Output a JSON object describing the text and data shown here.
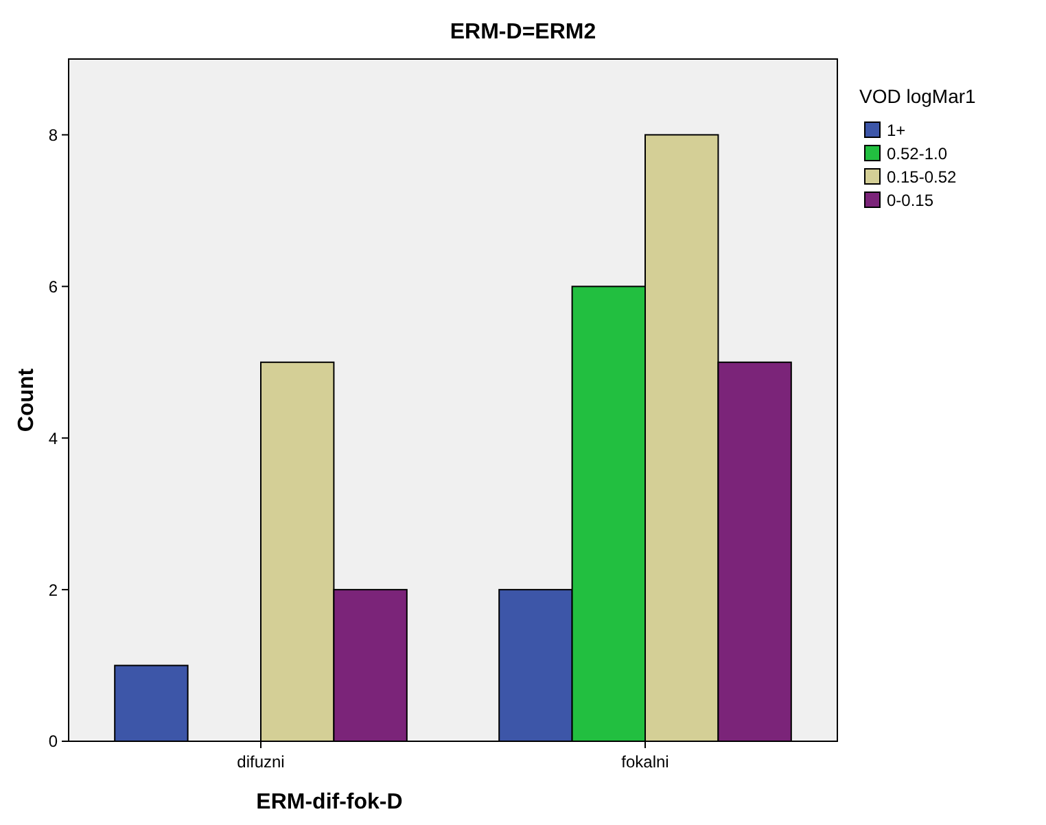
{
  "chart_data": {
    "type": "bar",
    "title": "ERM-D=ERM2",
    "xlabel": "ERM-dif-fok-D",
    "ylabel": "Count",
    "legend_title": "VOD logMar1",
    "categories": [
      "difuzni",
      "fokalni"
    ],
    "series": [
      {
        "name": "1+",
        "color": "#3d56a8",
        "values": [
          1,
          2
        ]
      },
      {
        "name": "0.52-1.0",
        "color": "#22bf40",
        "values": [
          0,
          6
        ]
      },
      {
        "name": "0.15-0.52",
        "color": "#d4cf96",
        "values": [
          5,
          8
        ]
      },
      {
        "name": "0-0.15",
        "color": "#7b2479",
        "values": [
          2,
          5
        ]
      }
    ],
    "ylim": [
      0,
      9
    ],
    "yticks": [
      0,
      2,
      4,
      6,
      8
    ],
    "grid": false,
    "legend": "top right"
  }
}
